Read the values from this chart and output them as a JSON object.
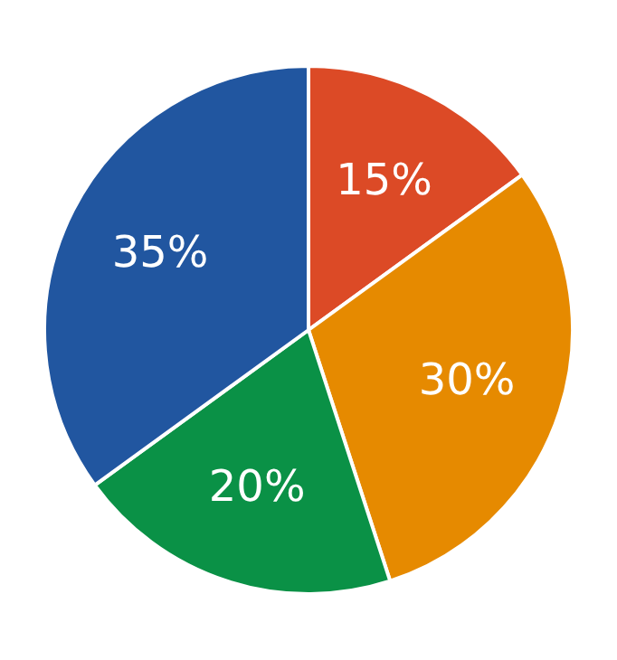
{
  "chart_data": {
    "type": "pie",
    "categories": [
      null,
      null,
      null,
      null
    ],
    "values": [
      15,
      30,
      20,
      35
    ],
    "colors": [
      "#dc4a26",
      "#e68a00",
      "#0a9146",
      "#2156a0"
    ],
    "value_labels": [
      "15%",
      "30%",
      "20%",
      "35%"
    ],
    "legend": false
  }
}
